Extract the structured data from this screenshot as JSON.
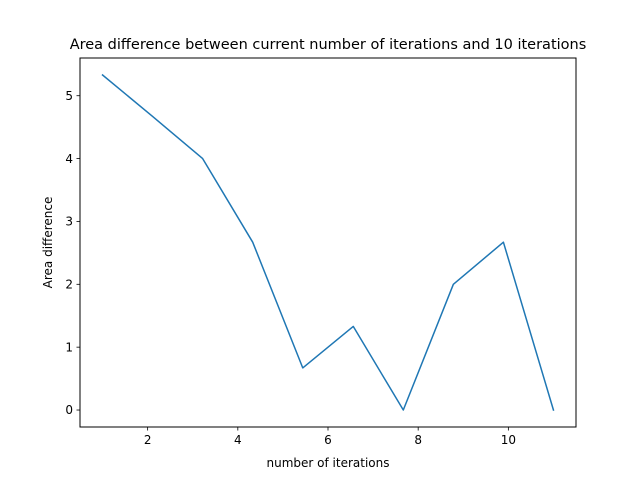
{
  "chart_data": {
    "type": "line",
    "title": "Area difference between current number of iterations and 10 iterations",
    "xlabel": "number of iterations",
    "ylabel": "Area difference",
    "xlim": [
      0.5,
      11.5
    ],
    "ylim": [
      -0.27,
      5.6
    ],
    "xticks": [
      2,
      4,
      6,
      8,
      10
    ],
    "yticks": [
      0,
      1,
      2,
      3,
      4,
      5
    ],
    "grid": false,
    "series": [
      {
        "color": "#1f77b4",
        "x": [
          1.0,
          2.11,
          3.22,
          4.33,
          5.44,
          6.56,
          7.67,
          8.78,
          9.89,
          11.0
        ],
        "y": [
          5.33,
          4.67,
          4.0,
          2.67,
          0.67,
          1.33,
          0.0,
          2.0,
          2.67,
          0.0
        ]
      }
    ]
  }
}
